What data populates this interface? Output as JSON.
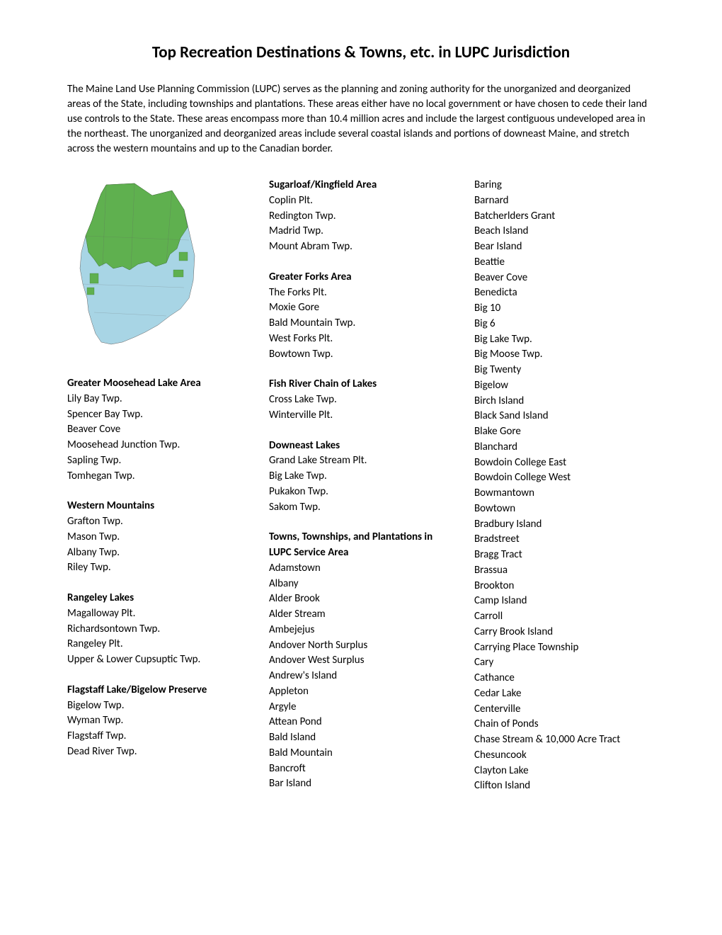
{
  "title": "Top Recreation Destinations & Towns, etc. in LUPC Jurisdiction",
  "intro": "The Maine Land Use Planning Commission (LUPC) serves as the planning and zoning authority for the unorganized and deorganized areas of the State, including townships and plantations. These areas either have no local government or have chosen to cede their land use controls to the State. These areas encompass more than 10.4 million acres and include the largest contiguous undeveloped area in the northeast. The unorganized and deorganized areas include several coastal islands and portions of downeast Maine, and stretch across the western mountains and up to the Canadian border.",
  "map_colors": {
    "lupc_area": "#5fb04f",
    "other_area": "#a8d5e5",
    "border": "#606060"
  },
  "col1_sections": [
    {
      "header": "Greater Moosehead Lake Area",
      "items": [
        "Lily Bay Twp.",
        "Spencer Bay Twp.",
        "Beaver Cove",
        "Moosehead Junction Twp.",
        "Sapling Twp.",
        "Tomhegan Twp."
      ]
    },
    {
      "header": "Western Mountains",
      "items": [
        "Grafton Twp.",
        "Mason Twp.",
        "Albany Twp.",
        "Riley Twp."
      ]
    },
    {
      "header": "Rangeley Lakes",
      "items": [
        "Magalloway Plt.",
        "Richardsontown Twp.",
        "Rangeley Plt.",
        "Upper & Lower Cupsuptic Twp."
      ]
    },
    {
      "header": "Flagstaff Lake/Bigelow Preserve",
      "items": [
        "Bigelow Twp.",
        "Wyman Twp.",
        "Flagstaff Twp.",
        "Dead River Twp."
      ]
    }
  ],
  "col2_sections": [
    {
      "header": "Sugarloaf/Kingfield Area",
      "items": [
        "Coplin Plt.",
        "Redington Twp.",
        "Madrid Twp.",
        "Mount Abram Twp."
      ]
    },
    {
      "header": "Greater Forks Area",
      "items": [
        "The Forks Plt.",
        "Moxie Gore",
        "Bald Mountain Twp.",
        "West Forks Plt.",
        "Bowtown Twp."
      ]
    },
    {
      "header": "Fish River Chain of Lakes",
      "items": [
        "Cross Lake Twp.",
        "Winterville Plt."
      ]
    },
    {
      "header": "Downeast Lakes",
      "items": [
        "Grand Lake Stream Plt.",
        "Big Lake Twp.",
        "Pukakon Twp.",
        "Sakom Twp."
      ]
    },
    {
      "header": "Towns, Townships, and Plantations in LUPC Service Area",
      "items": [
        "Adamstown",
        "Albany",
        "Alder Brook",
        "Alder Stream",
        "Ambejejus",
        "Andover North Surplus",
        "Andover West Surplus",
        "Andrew's Island",
        "Appleton",
        "Argyle",
        "Attean Pond",
        "Bald Island",
        "Bald Mountain",
        "Bancroft",
        "Bar Island"
      ]
    }
  ],
  "col3_items": [
    "Baring",
    "Barnard",
    "Batcherlders Grant",
    "Beach Island",
    "Bear Island",
    "Beattie",
    "Beaver Cove",
    "Benedicta",
    "Big 10",
    "Big 6",
    "Big Lake Twp.",
    "Big Moose Twp.",
    "Big Twenty",
    "Bigelow",
    "Birch Island",
    "Black Sand Island",
    "Blake Gore",
    "Blanchard",
    "Bowdoin College East",
    "Bowdoin College West",
    "Bowmantown",
    "Bowtown",
    "Bradbury Island",
    "Bradstreet",
    "Bragg Tract",
    "Brassua",
    "Brookton",
    "Camp Island",
    "Carroll",
    "Carry Brook Island",
    "Carrying Place Township",
    "Cary",
    "Cathance",
    "Cedar Lake",
    "Centerville",
    "Chain of Ponds",
    "Chase Stream & 10,000 Acre Tract",
    "Chesuncook",
    "Clayton Lake",
    "Clifton Island"
  ]
}
